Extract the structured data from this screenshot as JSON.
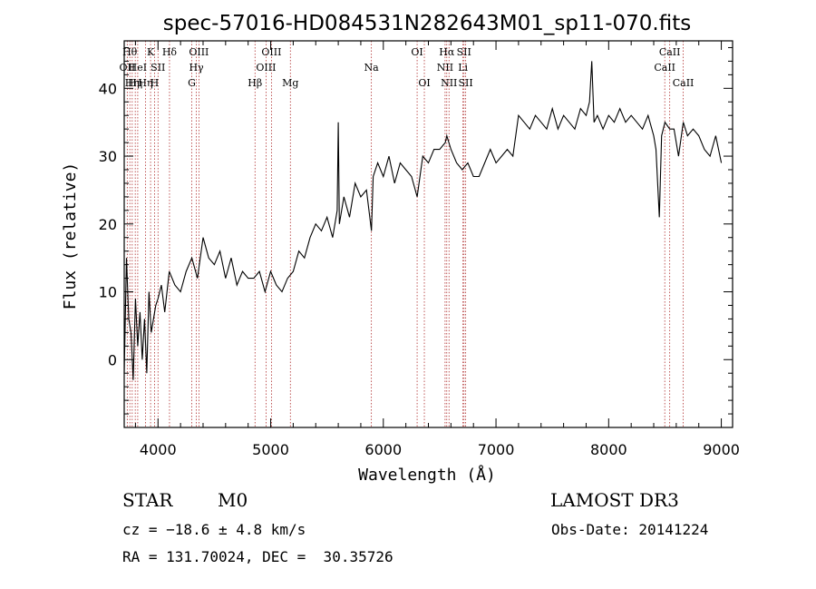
{
  "chart_data": {
    "type": "line",
    "title": "spec-57016-HD084531N282643M01_sp11-070.fits",
    "xlabel": "Wavelength (Å)",
    "ylabel": "Flux (relative)",
    "xlim": [
      3700,
      9100
    ],
    "ylim": [
      -10,
      47
    ],
    "x_ticks": [
      4000,
      5000,
      6000,
      7000,
      8000,
      9000
    ],
    "y_ticks": [
      0,
      10,
      20,
      30,
      40
    ],
    "grid": false,
    "series": [
      {
        "x": [
          3700,
          3720,
          3740,
          3760,
          3780,
          3800,
          3820,
          3840,
          3860,
          3880,
          3900,
          3920,
          3940,
          3960,
          3980,
          4000,
          4030,
          4060,
          4100,
          4150,
          4200,
          4250,
          4300,
          4350,
          4400,
          4450,
          4500,
          4550,
          4600,
          4650,
          4700,
          4750,
          4800,
          4850,
          4900,
          4950,
          5000,
          5050,
          5100,
          5150,
          5200,
          5250,
          5300,
          5350,
          5400,
          5450,
          5500,
          5550,
          5590,
          5600,
          5610,
          5650,
          5700,
          5750,
          5800,
          5850,
          5895,
          5910,
          5950,
          6000,
          6050,
          6100,
          6150,
          6200,
          6250,
          6300,
          6350,
          6400,
          6450,
          6500,
          6550,
          6563,
          6600,
          6650,
          6700,
          6750,
          6800,
          6850,
          6900,
          6950,
          7000,
          7050,
          7100,
          7150,
          7200,
          7250,
          7300,
          7350,
          7400,
          7450,
          7500,
          7550,
          7600,
          7650,
          7700,
          7750,
          7800,
          7830,
          7850,
          7870,
          7900,
          7950,
          8000,
          8050,
          8100,
          8150,
          8200,
          8250,
          8300,
          8350,
          8400,
          8420,
          8450,
          8470,
          8500,
          8542,
          8580,
          8620,
          8662,
          8700,
          8750,
          8800,
          8850,
          8900,
          8950,
          9000
        ],
        "values": [
          -2,
          15,
          6,
          4,
          -3,
          9,
          2,
          7,
          0,
          6,
          -2,
          10,
          4,
          6,
          8,
          9,
          11,
          7,
          13,
          11,
          10,
          13,
          15,
          12,
          18,
          15,
          14,
          16,
          12,
          15,
          11,
          13,
          12,
          12,
          13,
          10,
          13,
          11,
          10,
          12,
          13,
          16,
          15,
          18,
          20,
          19,
          21,
          18,
          22,
          35,
          20,
          24,
          21,
          26,
          24,
          25,
          19,
          27,
          29,
          27,
          30,
          26,
          29,
          28,
          27,
          24,
          30,
          29,
          31,
          31,
          32,
          33,
          31,
          29,
          28,
          29,
          27,
          27,
          29,
          31,
          29,
          30,
          31,
          30,
          36,
          35,
          34,
          36,
          35,
          34,
          37,
          34,
          36,
          35,
          34,
          37,
          36,
          38,
          44,
          35,
          36,
          34,
          36,
          35,
          37,
          35,
          36,
          35,
          34,
          36,
          33,
          31,
          21,
          33,
          35,
          34,
          34,
          30,
          35,
          33,
          34,
          33,
          31,
          30,
          33,
          29
        ]
      }
    ],
    "line_markers": [
      {
        "x": 3727,
        "label": "OII",
        "row": 2
      },
      {
        "x": 3750,
        "label": "Hθ",
        "row": 1
      },
      {
        "x": 3771,
        "label": "Hη",
        "row": 3
      },
      {
        "x": 3798,
        "label": "Hη",
        "row": 3
      },
      {
        "x": 3820,
        "label": "HeI",
        "row": 2
      },
      {
        "x": 3889,
        "label": "Hη",
        "row": 3
      },
      {
        "x": 3934,
        "label": "K",
        "row": 1
      },
      {
        "x": 3969,
        "label": "H",
        "row": 3
      },
      {
        "x": 4000,
        "label": "SII",
        "row": 2
      },
      {
        "x": 4102,
        "label": "Hδ",
        "row": 1
      },
      {
        "x": 4300,
        "label": "G",
        "row": 3
      },
      {
        "x": 4340,
        "label": "Hγ",
        "row": 2
      },
      {
        "x": 4363,
        "label": "OIII",
        "row": 1
      },
      {
        "x": 4861,
        "label": "Hβ",
        "row": 3
      },
      {
        "x": 4959,
        "label": "OIII",
        "row": 2
      },
      {
        "x": 5007,
        "label": "OIII",
        "row": 1
      },
      {
        "x": 5175,
        "label": "Mg",
        "row": 3
      },
      {
        "x": 5894,
        "label": "Na",
        "row": 2
      },
      {
        "x": 6300,
        "label": "OI",
        "row": 1
      },
      {
        "x": 6364,
        "label": "OI",
        "row": 3
      },
      {
        "x": 6548,
        "label": "NII",
        "row": 2
      },
      {
        "x": 6563,
        "label": "Hα",
        "row": 1
      },
      {
        "x": 6583,
        "label": "NII",
        "row": 3
      },
      {
        "x": 6707,
        "label": "Li",
        "row": 2
      },
      {
        "x": 6716,
        "label": "SII",
        "row": 1
      },
      {
        "x": 6731,
        "label": "SII",
        "row": 3
      },
      {
        "x": 8498,
        "label": "CaII",
        "row": 2
      },
      {
        "x": 8542,
        "label": "CaII",
        "row": 1
      },
      {
        "x": 8662,
        "label": "CaII",
        "row": 3
      }
    ]
  },
  "info": {
    "object_class": "STAR",
    "subclass": "M0",
    "survey": "LAMOST DR3",
    "cz": "cz = −18.6 ± 4.8 km/s",
    "obs_date": "Obs-Date: 20141224",
    "coords": "RA = 131.70024, DEC =  30.35726"
  },
  "colors": {
    "spectrum": "#000000",
    "marker": "#b03030",
    "axes": "#000000"
  }
}
